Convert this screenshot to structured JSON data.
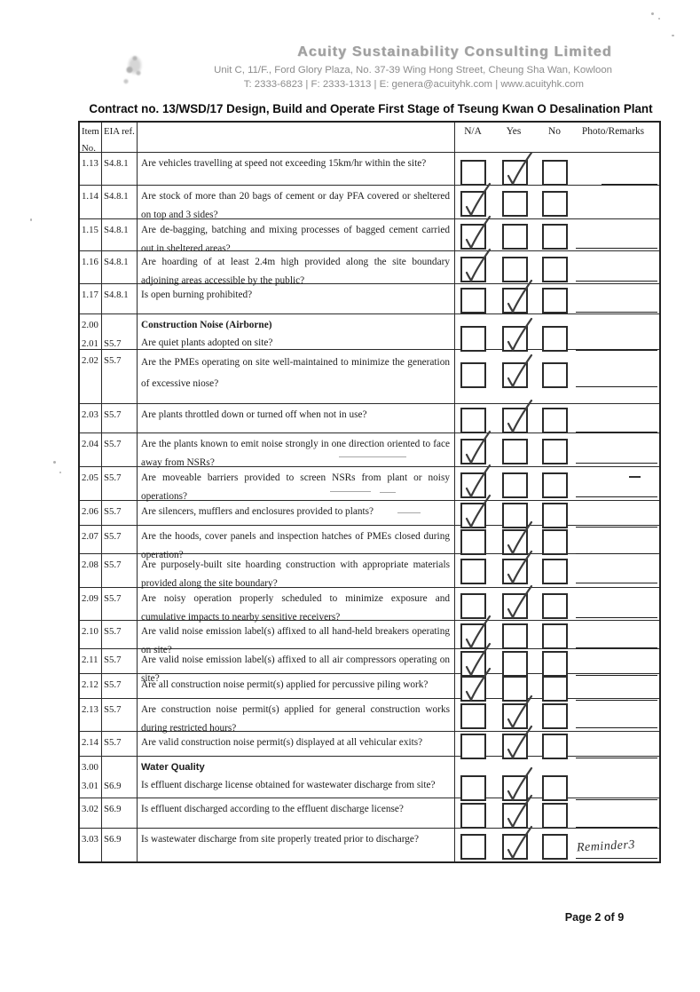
{
  "document": {
    "company_name": "Acuity Sustainability Consulting Limited",
    "company_address": "Unit C, 11/F., Ford Glory Plaza, No. 37-39 Wing Hong Street, Cheung Sha Wan, Kowloon",
    "company_contact": "T: 2333-6823 | F: 2333-1313 | E: genera@acuityhk.com | www.acuityhk.com",
    "title": "Contract no. 13/WSD/17 Design, Build and Operate First Stage of Tseung Kwan O Desalination Plant",
    "page_label": "Page 2 of 9"
  },
  "table": {
    "col_headers": {
      "item_line1": "Item",
      "item_line2": "No.",
      "eia": "EIA ref.",
      "na": "N/A",
      "yes": "Yes",
      "no": "No",
      "remarks": "Photo/Remarks"
    },
    "rows": [
      {
        "item": "1.13",
        "eia": "S4.8.1",
        "question": "Are vehicles travelling at speed not exceeding 15km/hr within the site?",
        "answer": "yes",
        "remark_line": "short"
      },
      {
        "item": "1.14",
        "eia": "S4.8.1",
        "question": "Are stock of more than 20 bags of cement or day PFA covered or sheltered on top and 3 sides?",
        "answer": "na",
        "remark_line": "none"
      },
      {
        "item": "1.15",
        "eia": "S4.8.1",
        "question": "Are de-bagging, batching and mixing processes of bagged cement carried out in sheltered areas?",
        "answer": "na",
        "remark_line": "long"
      },
      {
        "item": "1.16",
        "eia": "S4.8.1",
        "question": "Are hoarding of at least 2.4m high provided along the site boundary adjoining areas accessible by the public?",
        "answer": "na",
        "remark_line": "long"
      },
      {
        "item": "1.17",
        "eia": "S4.8.1",
        "question": "Is open burning prohibited?",
        "answer": "yes",
        "remark_line": "long"
      },
      {
        "item": "2.00",
        "section": "Construction Noise (Airborne)",
        "item2": "2.01",
        "eia": "S5.7",
        "question": "Are quiet plants adopted on site?",
        "answer": "yes",
        "remark_line": "long"
      },
      {
        "item": "2.02",
        "eia": "S5.7",
        "question": "Are the PMEs operating on site well-maintained to minimize the generation of excessive niose?",
        "answer": "yes",
        "remark_line": "long"
      },
      {
        "item": "2.03",
        "eia": "S5.7",
        "question": "Are plants throttled down or turned off when not in use?",
        "answer": "yes",
        "remark_line": "long"
      },
      {
        "item": "2.04",
        "eia": "S5.7",
        "question": "Are the plants known to emit noise strongly in one direction oriented to face away from NSRs?",
        "answer": "na",
        "remark_line": "long"
      },
      {
        "item": "2.05",
        "eia": "S5.7",
        "question": "Are moveable barriers provided to screen NSRs from plant or noisy operations?",
        "answer": "na",
        "remark_line": "long",
        "remark_dash": true
      },
      {
        "item": "2.06",
        "eia": "S5.7",
        "question": "Are silencers, mufflers and enclosures provided to plants?",
        "answer": "na",
        "remark_line": "long"
      },
      {
        "item": "2.07",
        "eia": "S5.7",
        "question": "Are the hoods, cover panels and inspection hatches of PMEs closed during operation?",
        "answer": "yes",
        "remark_line": "long"
      },
      {
        "item": "2.08",
        "eia": "S5.7",
        "question": "Are purposely-built site hoarding construction with appropriate materials provided along the site boundary?",
        "answer": "yes",
        "remark_line": "long"
      },
      {
        "item": "2.09",
        "eia": "S5.7",
        "question": "Are noisy operation properly scheduled to minimize exposure and cumulative impacts to nearby sensitive receivers?",
        "answer": "yes",
        "remark_line": "long"
      },
      {
        "item": "2.10",
        "eia": "S5.7",
        "question": "Are valid noise emission label(s) affixed to all hand-held breakers operating on site?",
        "answer": "na",
        "remark_line": "long"
      },
      {
        "item": "2.11",
        "eia": "S5.7",
        "question": "Are valid noise emission label(s) affixed to all air compressors operating on site?",
        "answer": "na",
        "remark_line": "long"
      },
      {
        "item": "2.12",
        "eia": "S5.7",
        "question": "Are all construction noise permit(s) applied for percussive piling work?",
        "answer": "na",
        "remark_line": "long"
      },
      {
        "item": "2.13",
        "eia": "S5.7",
        "question": "Are construction noise permit(s) applied for general construction works during restricted hours?",
        "answer": "yes",
        "remark_line": "long"
      },
      {
        "item": "2.14",
        "eia": "S5.7",
        "question": "Are valid construction noise permit(s) displayed at all vehicular exits?",
        "answer": "yes",
        "remark_line": "long"
      },
      {
        "item": "3.00",
        "section": "Water Quality",
        "item2": "3.01",
        "eia": "S6.9",
        "question": "Is effluent discharge license obtained for wastewater discharge from site?",
        "answer": "yes",
        "remark_line": "long"
      },
      {
        "item": "3.02",
        "eia": "S6.9",
        "question": "Is effluent discharged according to the effluent discharge license?",
        "answer": "yes",
        "remark_line": "long"
      },
      {
        "item": "3.03",
        "eia": "S6.9",
        "question": "Is wastewater discharge from site properly treated prior to discharge?",
        "answer": "yes",
        "remark_line": "long",
        "remark_note": "Reminder3"
      }
    ]
  }
}
